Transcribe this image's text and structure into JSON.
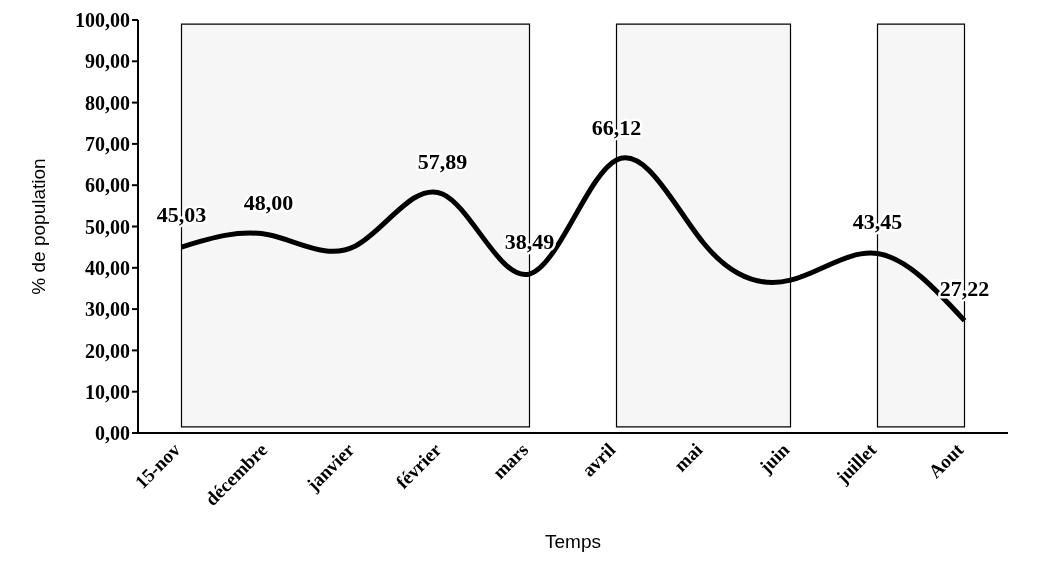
{
  "chart_data": {
    "type": "line",
    "xlabel": "Temps",
    "ylabel": "% de population",
    "categories": [
      "15-nov",
      "décembre",
      "janvier",
      "février",
      "mars",
      "avril",
      "mai",
      "juin",
      "juillet",
      "Aout"
    ],
    "values": [
      45.03,
      48.0,
      45.3,
      57.89,
      38.49,
      66.12,
      46,
      37,
      43.45,
      27.22
    ],
    "value_labels": [
      "45,03",
      "48,00",
      null,
      "57,89",
      "38,49",
      "66,12",
      null,
      null,
      "43,45",
      "27,22"
    ],
    "color": "#000000",
    "marker": "none",
    "grid": false,
    "ylim": [
      0,
      100
    ],
    "yticks": [
      {
        "value": 0,
        "label": "0,00"
      },
      {
        "value": 10,
        "label": "10,00"
      },
      {
        "value": 20,
        "label": "20,00"
      },
      {
        "value": 30,
        "label": "30,00"
      },
      {
        "value": 40,
        "label": "40,00"
      },
      {
        "value": 50,
        "label": "50,00"
      },
      {
        "value": 60,
        "label": "60,00"
      },
      {
        "value": 70,
        "label": "70,00"
      },
      {
        "value": 80,
        "label": "80,00"
      },
      {
        "value": 90,
        "label": "90,00"
      },
      {
        "value": 100,
        "label": "100,00"
      }
    ],
    "bands": [
      {
        "axis": "x",
        "from": "15-nov",
        "to": "mars"
      },
      {
        "axis": "x",
        "from": "avril",
        "to": "juin"
      },
      {
        "axis": "x",
        "from": "juillet",
        "to": "Aout"
      }
    ]
  }
}
